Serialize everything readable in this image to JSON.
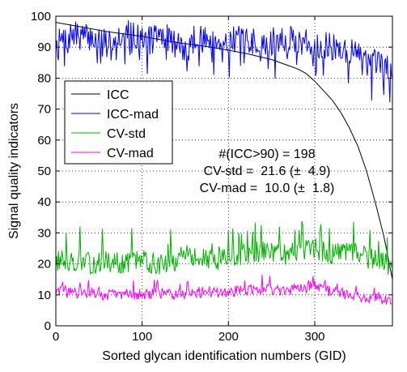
{
  "chart_data": {
    "type": "line",
    "xlabel": "Sorted glycan identification numbers (GID)",
    "ylabel": "Signal quality indicators",
    "xlim": [
      0,
      390
    ],
    "ylim": [
      0,
      100
    ],
    "xticks": [
      0,
      100,
      200,
      300
    ],
    "yticks": [
      0,
      10,
      20,
      30,
      40,
      50,
      60,
      70,
      80,
      90,
      100
    ],
    "grid": true,
    "legend_position": "upper-left",
    "series": [
      {
        "name": "ICC",
        "color": "#000000",
        "x": [
          0,
          30,
          60,
          100,
          140,
          180,
          200,
          220,
          250,
          270,
          280,
          290,
          300,
          310,
          320,
          330,
          340,
          350,
          360,
          370,
          380,
          385,
          390
        ],
        "values": [
          98,
          96.5,
          95,
          93.5,
          91.5,
          90,
          89,
          88,
          86,
          84,
          83,
          81.5,
          79,
          76,
          73,
          69,
          64,
          58,
          50,
          40,
          29,
          22,
          15
        ]
      },
      {
        "name": "ICC-mad",
        "color": "#0000ff",
        "x": [
          0,
          20,
          40,
          60,
          80,
          100,
          120,
          140,
          150,
          160,
          180,
          200,
          220,
          240,
          260,
          280,
          300,
          320,
          340,
          360,
          380,
          390
        ],
        "values": [
          91,
          94,
          93,
          92,
          95,
          93,
          94,
          92,
          88,
          93,
          92,
          93,
          92,
          91,
          93,
          92,
          91,
          90,
          89,
          86,
          84,
          82
        ]
      },
      {
        "name": "CV-std",
        "color": "#00b000",
        "x": [
          0,
          20,
          40,
          60,
          80,
          100,
          120,
          140,
          160,
          180,
          200,
          220,
          240,
          260,
          280,
          300,
          320,
          340,
          360,
          380,
          390
        ],
        "values": [
          21,
          21,
          20,
          21,
          20,
          21,
          20,
          21,
          22,
          21,
          22,
          23,
          24,
          23,
          24,
          25,
          23,
          24,
          22,
          21,
          18
        ]
      },
      {
        "name": "CV-mad",
        "color": "#ff00ff",
        "x": [
          0,
          20,
          40,
          60,
          80,
          100,
          120,
          140,
          160,
          180,
          200,
          220,
          240,
          260,
          280,
          300,
          320,
          340,
          360,
          380,
          390
        ],
        "values": [
          11,
          10.5,
          10.5,
          10,
          10.5,
          10,
          10.5,
          10,
          11,
          10.5,
          11,
          11.5,
          12,
          11.5,
          12,
          13,
          11,
          10,
          9,
          8.5,
          8
        ]
      }
    ],
    "annotations": [
      "#(ICC>90) = 198",
      "CV-std =  21.6 (±  4.9)",
      "CV-mad =  10.0 (±  1.8)"
    ]
  }
}
